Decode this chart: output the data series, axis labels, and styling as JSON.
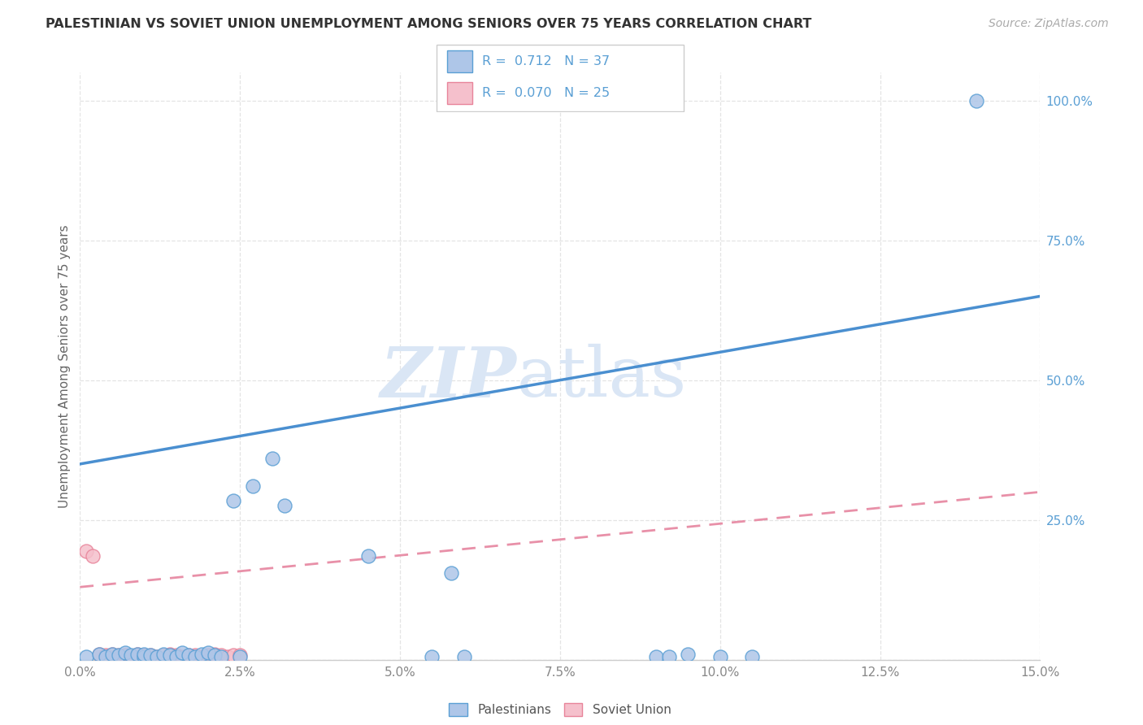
{
  "title": "PALESTINIAN VS SOVIET UNION UNEMPLOYMENT AMONG SENIORS OVER 75 YEARS CORRELATION CHART",
  "source": "Source: ZipAtlas.com",
  "ylabel": "Unemployment Among Seniors over 75 years",
  "xlim": [
    0.0,
    0.15
  ],
  "ylim": [
    0.0,
    1.05
  ],
  "xtick_positions": [
    0.0,
    0.025,
    0.05,
    0.075,
    0.1,
    0.125,
    0.15
  ],
  "xtick_labels": [
    "0.0%",
    "2.5%",
    "5.0%",
    "7.5%",
    "10.0%",
    "12.5%",
    "15.0%"
  ],
  "ytick_positions": [
    0.0,
    0.25,
    0.5,
    0.75,
    1.0
  ],
  "ytick_labels": [
    "",
    "25.0%",
    "50.0%",
    "75.0%",
    "100.0%"
  ],
  "r_blue": 0.712,
  "n_blue": 37,
  "r_pink": 0.07,
  "n_pink": 25,
  "blue_dot_face": "#aec6e8",
  "blue_dot_edge": "#5a9fd4",
  "pink_dot_face": "#f5c0cc",
  "pink_dot_edge": "#e8849a",
  "blue_line_color": "#4a8fd0",
  "pink_line_color": "#e890a8",
  "tick_color": "#5a9fd4",
  "watermark_color": "#dae6f5",
  "grid_color": "#e4e4e4",
  "blue_line_x": [
    0.0,
    0.15
  ],
  "blue_line_y": [
    0.35,
    0.65
  ],
  "pink_line_x": [
    0.0,
    0.15
  ],
  "pink_line_y": [
    0.13,
    0.3
  ],
  "blue_scatter_x": [
    0.001,
    0.003,
    0.004,
    0.005,
    0.006,
    0.007,
    0.008,
    0.009,
    0.01,
    0.01,
    0.011,
    0.012,
    0.013,
    0.014,
    0.015,
    0.016,
    0.017,
    0.018,
    0.019,
    0.02,
    0.021,
    0.022,
    0.024,
    0.025,
    0.027,
    0.03,
    0.032,
    0.045,
    0.055,
    0.058,
    0.06,
    0.09,
    0.092,
    0.095,
    0.1,
    0.105,
    0.14
  ],
  "blue_scatter_y": [
    0.005,
    0.01,
    0.005,
    0.01,
    0.008,
    0.012,
    0.008,
    0.01,
    0.005,
    0.01,
    0.008,
    0.005,
    0.01,
    0.008,
    0.005,
    0.012,
    0.008,
    0.005,
    0.01,
    0.012,
    0.008,
    0.005,
    0.285,
    0.005,
    0.31,
    0.36,
    0.275,
    0.185,
    0.005,
    0.155,
    0.005,
    0.005,
    0.005,
    0.01,
    0.005,
    0.005,
    1.0
  ],
  "pink_scatter_x": [
    0.001,
    0.002,
    0.003,
    0.004,
    0.005,
    0.006,
    0.007,
    0.008,
    0.009,
    0.01,
    0.011,
    0.012,
    0.013,
    0.014,
    0.015,
    0.016,
    0.017,
    0.018,
    0.019,
    0.02,
    0.021,
    0.022,
    0.023,
    0.024,
    0.025
  ],
  "pink_scatter_y": [
    0.195,
    0.185,
    0.01,
    0.008,
    0.01,
    0.008,
    0.008,
    0.005,
    0.01,
    0.008,
    0.008,
    0.005,
    0.008,
    0.01,
    0.008,
    0.005,
    0.008,
    0.008,
    0.005,
    0.008,
    0.01,
    0.008,
    0.005,
    0.008,
    0.008
  ]
}
